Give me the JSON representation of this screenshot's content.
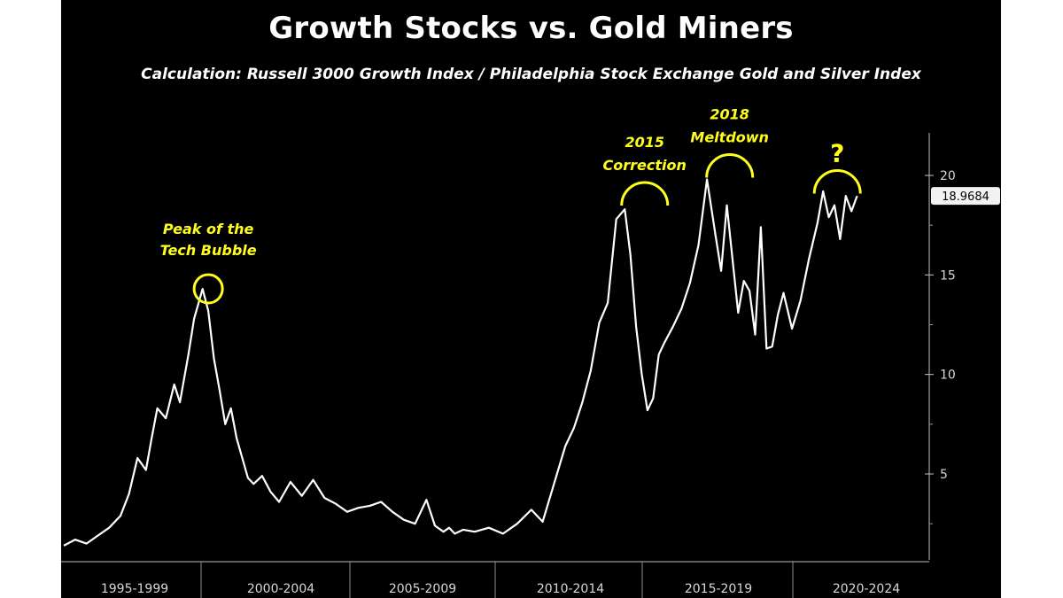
{
  "chart_data": {
    "type": "line",
    "title": "Growth Stocks vs. Gold Miners",
    "subtitle": "Calculation: Russell 3000 Growth Index / Philadelphia Stock Exchange Gold and Silver Index",
    "xlabel": "",
    "ylabel": "",
    "ylim": [
      0,
      21
    ],
    "y_ticks": [
      5,
      10,
      15,
      20
    ],
    "grid": false,
    "axis_side": "right",
    "x_periods": [
      "1995-1999",
      "2000-2004",
      "2005-2009",
      "2010-2014",
      "2015-2019",
      "2020-2024"
    ],
    "xlim": [
      1995.0,
      2024.7
    ],
    "last_value_label": "18.9684",
    "last_value": 18.9684,
    "series": [
      {
        "color": "#ffffff",
        "x": [
          1995.0,
          1995.4,
          1995.8,
          1996.2,
          1996.6,
          1997.0,
          1997.3,
          1997.6,
          1997.9,
          1998.1,
          1998.3,
          1998.6,
          1998.9,
          1999.1,
          1999.4,
          1999.6,
          1999.9,
          2000.1,
          2000.3,
          2000.5,
          2000.7,
          2000.9,
          2001.1,
          2001.3,
          2001.5,
          2001.7,
          2002.0,
          2002.3,
          2002.6,
          2003.0,
          2003.4,
          2003.8,
          2004.2,
          2004.6,
          2005.0,
          2005.4,
          2005.8,
          2006.2,
          2006.6,
          2007.0,
          2007.4,
          2007.8,
          2008.1,
          2008.4,
          2008.6,
          2008.8,
          2009.1,
          2009.5,
          2010.0,
          2010.5,
          2011.0,
          2011.5,
          2011.9,
          2012.3,
          2012.7,
          2013.0,
          2013.3,
          2013.6,
          2013.9,
          2014.2,
          2014.5,
          2014.8,
          2015.0,
          2015.2,
          2015.4,
          2015.6,
          2015.8,
          2016.0,
          2016.2,
          2016.5,
          2016.8,
          2017.1,
          2017.4,
          2017.7,
          2018.0,
          2018.2,
          2018.4,
          2018.6,
          2018.8,
          2019.0,
          2019.2,
          2019.4,
          2019.6,
          2019.8,
          2020.0,
          2020.2,
          2020.4,
          2020.7,
          2021.0,
          2021.3,
          2021.6,
          2021.8,
          2022.0,
          2022.2,
          2022.4,
          2022.6,
          2022.8,
          2023.0
        ],
        "values": [
          1.4,
          1.7,
          1.5,
          1.9,
          2.3,
          2.9,
          4.0,
          5.8,
          5.2,
          6.8,
          8.3,
          7.8,
          9.5,
          8.6,
          11.0,
          12.8,
          14.3,
          13.2,
          10.8,
          9.2,
          7.5,
          8.3,
          6.8,
          5.8,
          4.8,
          4.5,
          4.9,
          4.1,
          3.6,
          4.6,
          3.9,
          4.7,
          3.8,
          3.5,
          3.1,
          3.3,
          3.4,
          3.6,
          3.1,
          2.7,
          2.5,
          3.7,
          2.4,
          2.1,
          2.3,
          2.0,
          2.2,
          2.1,
          2.3,
          2.0,
          2.5,
          3.2,
          2.6,
          4.5,
          6.4,
          7.3,
          8.6,
          10.2,
          12.6,
          13.6,
          17.8,
          18.3,
          16.0,
          12.4,
          10.0,
          8.2,
          8.8,
          11.0,
          11.6,
          12.4,
          13.3,
          14.6,
          16.5,
          19.8,
          17.0,
          15.2,
          18.5,
          15.8,
          13.1,
          14.7,
          14.2,
          12.0,
          17.4,
          11.3,
          11.4,
          13.0,
          14.1,
          12.3,
          13.7,
          15.8,
          17.6,
          19.2,
          17.9,
          18.5,
          16.8,
          18.97,
          18.2,
          18.97
        ]
      }
    ],
    "annotations": [
      {
        "lines": [
          "Peak of the",
          "Tech Bubble"
        ],
        "x": 2000.1,
        "y": 14.3,
        "shape": "circle"
      },
      {
        "lines": [
          "2015",
          "Correction"
        ],
        "x": 2015.5,
        "y": 18.4,
        "shape": "arc"
      },
      {
        "lines": [
          "2018",
          "Meltdown"
        ],
        "x": 2018.5,
        "y": 19.8,
        "shape": "arc"
      },
      {
        "lines": [
          "?"
        ],
        "x": 2022.3,
        "y": 19.0,
        "shape": "arc"
      }
    ],
    "annotation_color": "#ffff1a"
  }
}
